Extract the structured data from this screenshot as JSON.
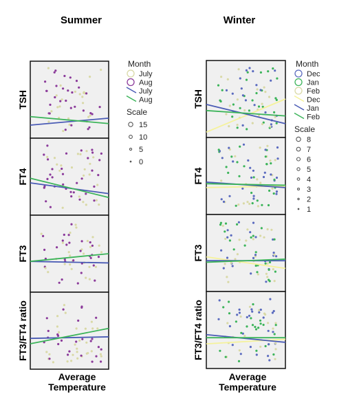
{
  "chart_data": [
    {
      "type": "scatter",
      "title": "Summer",
      "xlabel": [
        "Average",
        "Temperature"
      ],
      "panels": [
        "TSH",
        "FT4",
        "FT3",
        "FT3/FT4 ratio"
      ],
      "legend": {
        "placement": "right",
        "month_title": "Month",
        "series": [
          {
            "name": "July",
            "color": "#d9d9a6"
          },
          {
            "name": "Aug",
            "color": "#8b3a9a"
          }
        ],
        "fit_lines": [
          {
            "name": "July",
            "color": "#4a5bb5"
          },
          {
            "name": "Aug",
            "color": "#3cb45a"
          }
        ],
        "scale_title": "Scale",
        "scale_values": [
          "15",
          "10",
          "5",
          "0"
        ]
      },
      "fit_lines_by_panel": [
        {
          "July": [
            0.83,
            0.74
          ],
          "Aug": [
            0.72,
            0.81
          ]
        },
        {
          "July": [
            0.58,
            0.72
          ],
          "Aug": [
            0.52,
            0.77
          ]
        },
        {
          "July": [
            0.6,
            0.62
          ],
          "Aug": [
            0.6,
            0.5
          ]
        },
        {
          "July": [
            0.6,
            0.58
          ],
          "Aug": [
            0.67,
            0.47
          ]
        }
      ]
    },
    {
      "type": "scatter",
      "title": "Winter",
      "xlabel": [
        "Average",
        "Temperature"
      ],
      "panels": [
        "TSH",
        "FT4",
        "FT3",
        "FT3/FT4 ratio"
      ],
      "legend": {
        "placement": "right",
        "month_title": "Month",
        "series": [
          {
            "name": "Dec",
            "color": "#5b6bbf"
          },
          {
            "name": "Jan",
            "color": "#3cb45a"
          },
          {
            "name": "Feb",
            "color": "#d9d9a6"
          }
        ],
        "fit_lines": [
          {
            "name": "Dec",
            "color": "#f5f29a"
          },
          {
            "name": "Jan",
            "color": "#4a5bb5"
          },
          {
            "name": "Feb",
            "color": "#3cb45a"
          }
        ],
        "scale_title": "Scale",
        "scale_values": [
          "8",
          "7",
          "6",
          "5",
          "4",
          "3",
          "2",
          "1"
        ]
      },
      "fit_lines_by_panel": [
        {
          "Dec": [
            0.93,
            0.5
          ],
          "Jan": [
            0.57,
            0.82
          ],
          "Feb": [
            0.65,
            0.72
          ]
        },
        {
          "Dec": [
            0.65,
            0.63
          ],
          "Jan": [
            0.58,
            0.65
          ],
          "Feb": [
            0.6,
            0.62
          ]
        },
        {
          "Dec": [
            0.55,
            0.7
          ],
          "Jan": [
            0.6,
            0.6
          ],
          "Feb": [
            0.62,
            0.58
          ]
        },
        {
          "Dec": [
            0.68,
            0.62
          ],
          "Jan": [
            0.56,
            0.66
          ],
          "Feb": [
            0.6,
            0.6
          ]
        }
      ]
    }
  ]
}
